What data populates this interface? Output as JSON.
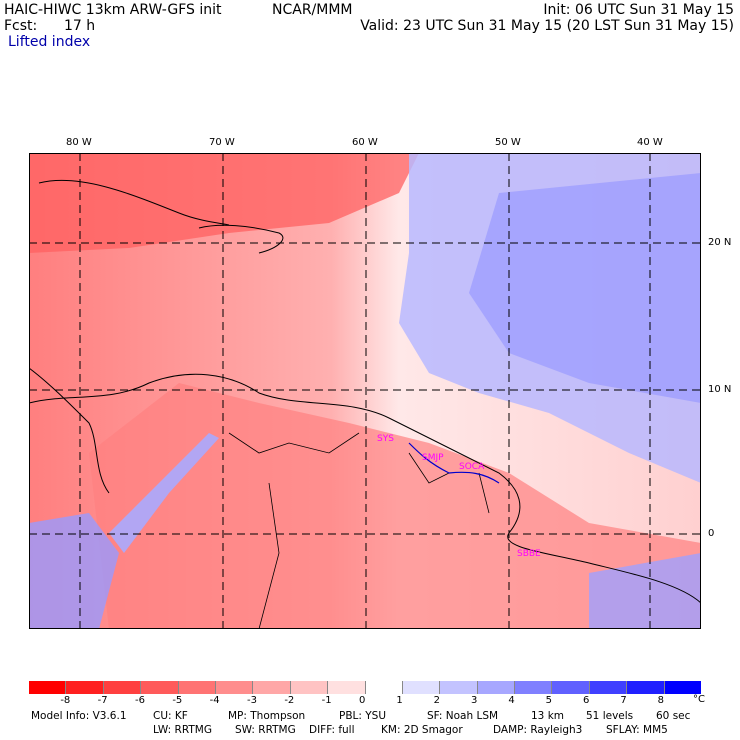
{
  "header": {
    "model_title": "HAIC-HIWC 13km ARW-GFS init",
    "org": "NCAR/MMM",
    "init": "Init: 06 UTC Sun 31 May 15",
    "fcst_label": "Fcst:",
    "fcst_value": "17 h",
    "valid": "Valid: 23 UTC Sun 31 May 15 (20 LST Sun 31 May 15)",
    "field": "Lifted index"
  },
  "map": {
    "lon_labels": [
      "80 W",
      "70 W",
      "60 W",
      "50 W",
      "40 W"
    ],
    "lat_labels": [
      "20 N",
      "10 N",
      "0"
    ],
    "station_labels": [
      "SYS",
      "SMJP",
      "SOCA",
      "SBBE"
    ]
  },
  "colorbar": {
    "tick_labels": [
      "-8",
      "-7",
      "-6",
      "-5",
      "-4",
      "-3",
      "-2",
      "-1",
      "0",
      "1",
      "2",
      "3",
      "4",
      "5",
      "6",
      "7",
      "8"
    ],
    "unit": "°C",
    "colors": [
      "#ff0000",
      "#ff2020",
      "#ff4040",
      "#ff5a5a",
      "#ff7373",
      "#ff8d8d",
      "#ffa7a7",
      "#ffc3c3",
      "#ffe0e0",
      "#ffffff",
      "#e0e0ff",
      "#c3c3ff",
      "#a7a7ff",
      "#8080ff",
      "#6060ff",
      "#4040ff",
      "#2020ff",
      "#0000ff"
    ]
  },
  "footer": {
    "row1": [
      "Model Info: V3.6.1",
      "CU: KF",
      "MP: Thompson",
      "PBL: YSU",
      "SF: Noah LSM",
      "13 km",
      "51 levels",
      "60 sec"
    ],
    "row2": [
      "LW: RRTMG",
      "SW: RRTMG",
      "DIFF: full",
      "KM: 2D Smagor",
      "DAMP: Rayleigh3",
      "SFLAY: MM5"
    ]
  }
}
